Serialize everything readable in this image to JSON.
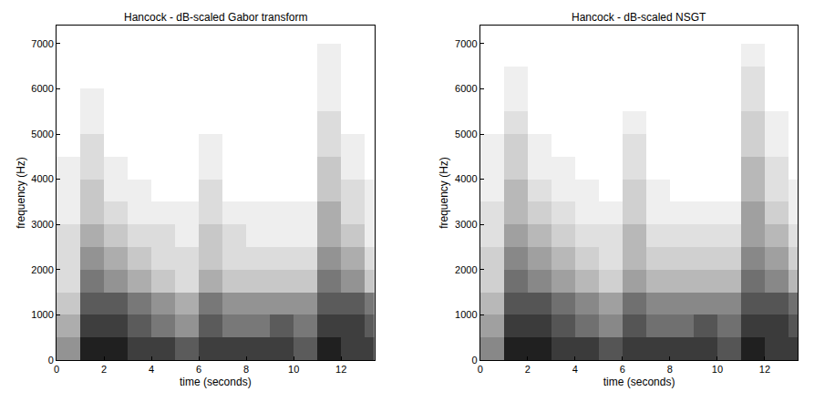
{
  "chart_data": [
    {
      "type": "heatmap",
      "title": "Hancock - dB-scaled Gabor transform",
      "x_label": "time (seconds)",
      "y_label": "frequency (Hz)",
      "x": [
        0.5,
        1.5,
        2.5,
        3.5,
        4.5,
        5.5,
        6.5,
        7.5,
        8.5,
        9.5,
        10.5,
        11.5,
        12.5,
        13.5
      ],
      "y": [
        250,
        750,
        1250,
        1750,
        2250,
        2750,
        3250,
        3750,
        4250,
        4750,
        5250,
        5750,
        6250,
        6750,
        7250
      ],
      "z": [
        [
          5,
          9,
          9,
          8,
          8,
          7,
          8,
          8,
          8,
          8,
          7,
          9,
          8,
          8
        ],
        [
          4,
          8,
          8,
          7,
          6,
          5,
          7,
          6,
          6,
          7,
          6,
          8,
          8,
          7
        ],
        [
          3,
          7,
          7,
          6,
          5,
          4,
          6,
          5,
          5,
          5,
          5,
          7,
          7,
          6
        ],
        [
          2,
          6,
          5,
          4,
          3,
          2,
          4,
          3,
          3,
          3,
          3,
          6,
          5,
          3
        ],
        [
          2,
          5,
          4,
          3,
          2,
          2,
          3,
          2,
          2,
          2,
          2,
          5,
          4,
          2
        ],
        [
          2,
          4,
          3,
          2,
          2,
          1,
          3,
          2,
          1,
          1,
          1,
          4,
          3,
          1
        ],
        [
          1,
          3,
          2,
          1,
          1,
          1,
          2,
          1,
          1,
          1,
          1,
          4,
          2,
          1
        ],
        [
          1,
          3,
          1,
          1,
          0,
          0,
          2,
          0,
          0,
          0,
          0,
          3,
          2,
          1
        ],
        [
          1,
          2,
          1,
          0,
          0,
          0,
          1,
          0,
          0,
          0,
          0,
          3,
          1,
          0
        ],
        [
          0,
          2,
          0,
          0,
          0,
          0,
          1,
          0,
          0,
          0,
          0,
          2,
          1,
          0
        ],
        [
          0,
          1,
          0,
          0,
          0,
          0,
          0,
          0,
          0,
          0,
          0,
          2,
          0,
          0
        ],
        [
          0,
          1,
          0,
          0,
          0,
          0,
          0,
          0,
          0,
          0,
          0,
          1,
          0,
          0
        ],
        [
          0,
          0,
          0,
          0,
          0,
          0,
          0,
          0,
          0,
          0,
          0,
          1,
          0,
          0
        ],
        [
          0,
          0,
          0,
          0,
          0,
          0,
          0,
          0,
          0,
          0,
          0,
          1,
          0,
          0
        ],
        [
          0,
          0,
          0,
          0,
          0,
          0,
          0,
          0,
          0,
          0,
          0,
          0,
          0,
          0
        ]
      ],
      "xlim": [
        0,
        13.4
      ],
      "ylim": [
        0,
        7400
      ],
      "xticks": [
        0,
        2,
        4,
        6,
        8,
        10,
        12
      ],
      "yticks": [
        0,
        1000,
        2000,
        3000,
        4000,
        5000,
        6000,
        7000
      ]
    },
    {
      "type": "heatmap",
      "title": "Hancock - dB-scaled NSGT",
      "x_label": "time (seconds)",
      "y_label": "frequency (Hz)",
      "x": [
        0.5,
        1.5,
        2.5,
        3.5,
        4.5,
        5.5,
        6.5,
        7.5,
        8.5,
        9.5,
        10.5,
        11.5,
        12.5,
        13.5
      ],
      "y": [
        250,
        750,
        1250,
        1750,
        2250,
        2750,
        3250,
        3750,
        4250,
        4750,
        5250,
        5750,
        6250,
        6750,
        7250
      ],
      "z": [
        [
          6,
          10,
          10,
          9,
          9,
          8,
          9,
          9,
          9,
          9,
          8,
          10,
          9,
          9
        ],
        [
          5,
          9,
          9,
          8,
          7,
          6,
          8,
          7,
          7,
          8,
          7,
          9,
          9,
          8
        ],
        [
          4,
          8,
          8,
          7,
          6,
          5,
          7,
          6,
          6,
          6,
          6,
          8,
          8,
          7
        ],
        [
          3,
          7,
          6,
          5,
          4,
          3,
          5,
          4,
          4,
          4,
          4,
          7,
          6,
          4
        ],
        [
          3,
          6,
          5,
          4,
          3,
          2,
          4,
          3,
          3,
          3,
          3,
          6,
          5,
          3
        ],
        [
          2,
          5,
          4,
          3,
          2,
          2,
          4,
          2,
          2,
          2,
          2,
          5,
          4,
          2
        ],
        [
          2,
          4,
          3,
          2,
          1,
          1,
          3,
          1,
          1,
          1,
          1,
          5,
          3,
          1
        ],
        [
          1,
          4,
          2,
          1,
          1,
          0,
          3,
          1,
          0,
          0,
          0,
          4,
          2,
          1
        ],
        [
          1,
          3,
          1,
          1,
          0,
          0,
          2,
          0,
          0,
          0,
          0,
          4,
          2,
          0
        ],
        [
          1,
          3,
          1,
          0,
          0,
          0,
          2,
          0,
          0,
          0,
          0,
          3,
          1,
          0
        ],
        [
          0,
          2,
          0,
          0,
          0,
          0,
          1,
          0,
          0,
          0,
          0,
          3,
          1,
          0
        ],
        [
          0,
          1,
          0,
          0,
          0,
          0,
          0,
          0,
          0,
          0,
          0,
          2,
          0,
          0
        ],
        [
          0,
          1,
          0,
          0,
          0,
          0,
          0,
          0,
          0,
          0,
          0,
          2,
          0,
          0
        ],
        [
          0,
          0,
          0,
          0,
          0,
          0,
          0,
          0,
          0,
          0,
          0,
          1,
          0,
          0
        ],
        [
          0,
          0,
          0,
          0,
          0,
          0,
          0,
          0,
          0,
          0,
          0,
          0,
          0,
          0
        ]
      ],
      "xlim": [
        0,
        13.4
      ],
      "ylim": [
        0,
        7400
      ],
      "xticks": [
        0,
        2,
        4,
        6,
        8,
        10,
        12
      ],
      "yticks": [
        0,
        1000,
        2000,
        3000,
        4000,
        5000,
        6000,
        7000
      ]
    }
  ]
}
